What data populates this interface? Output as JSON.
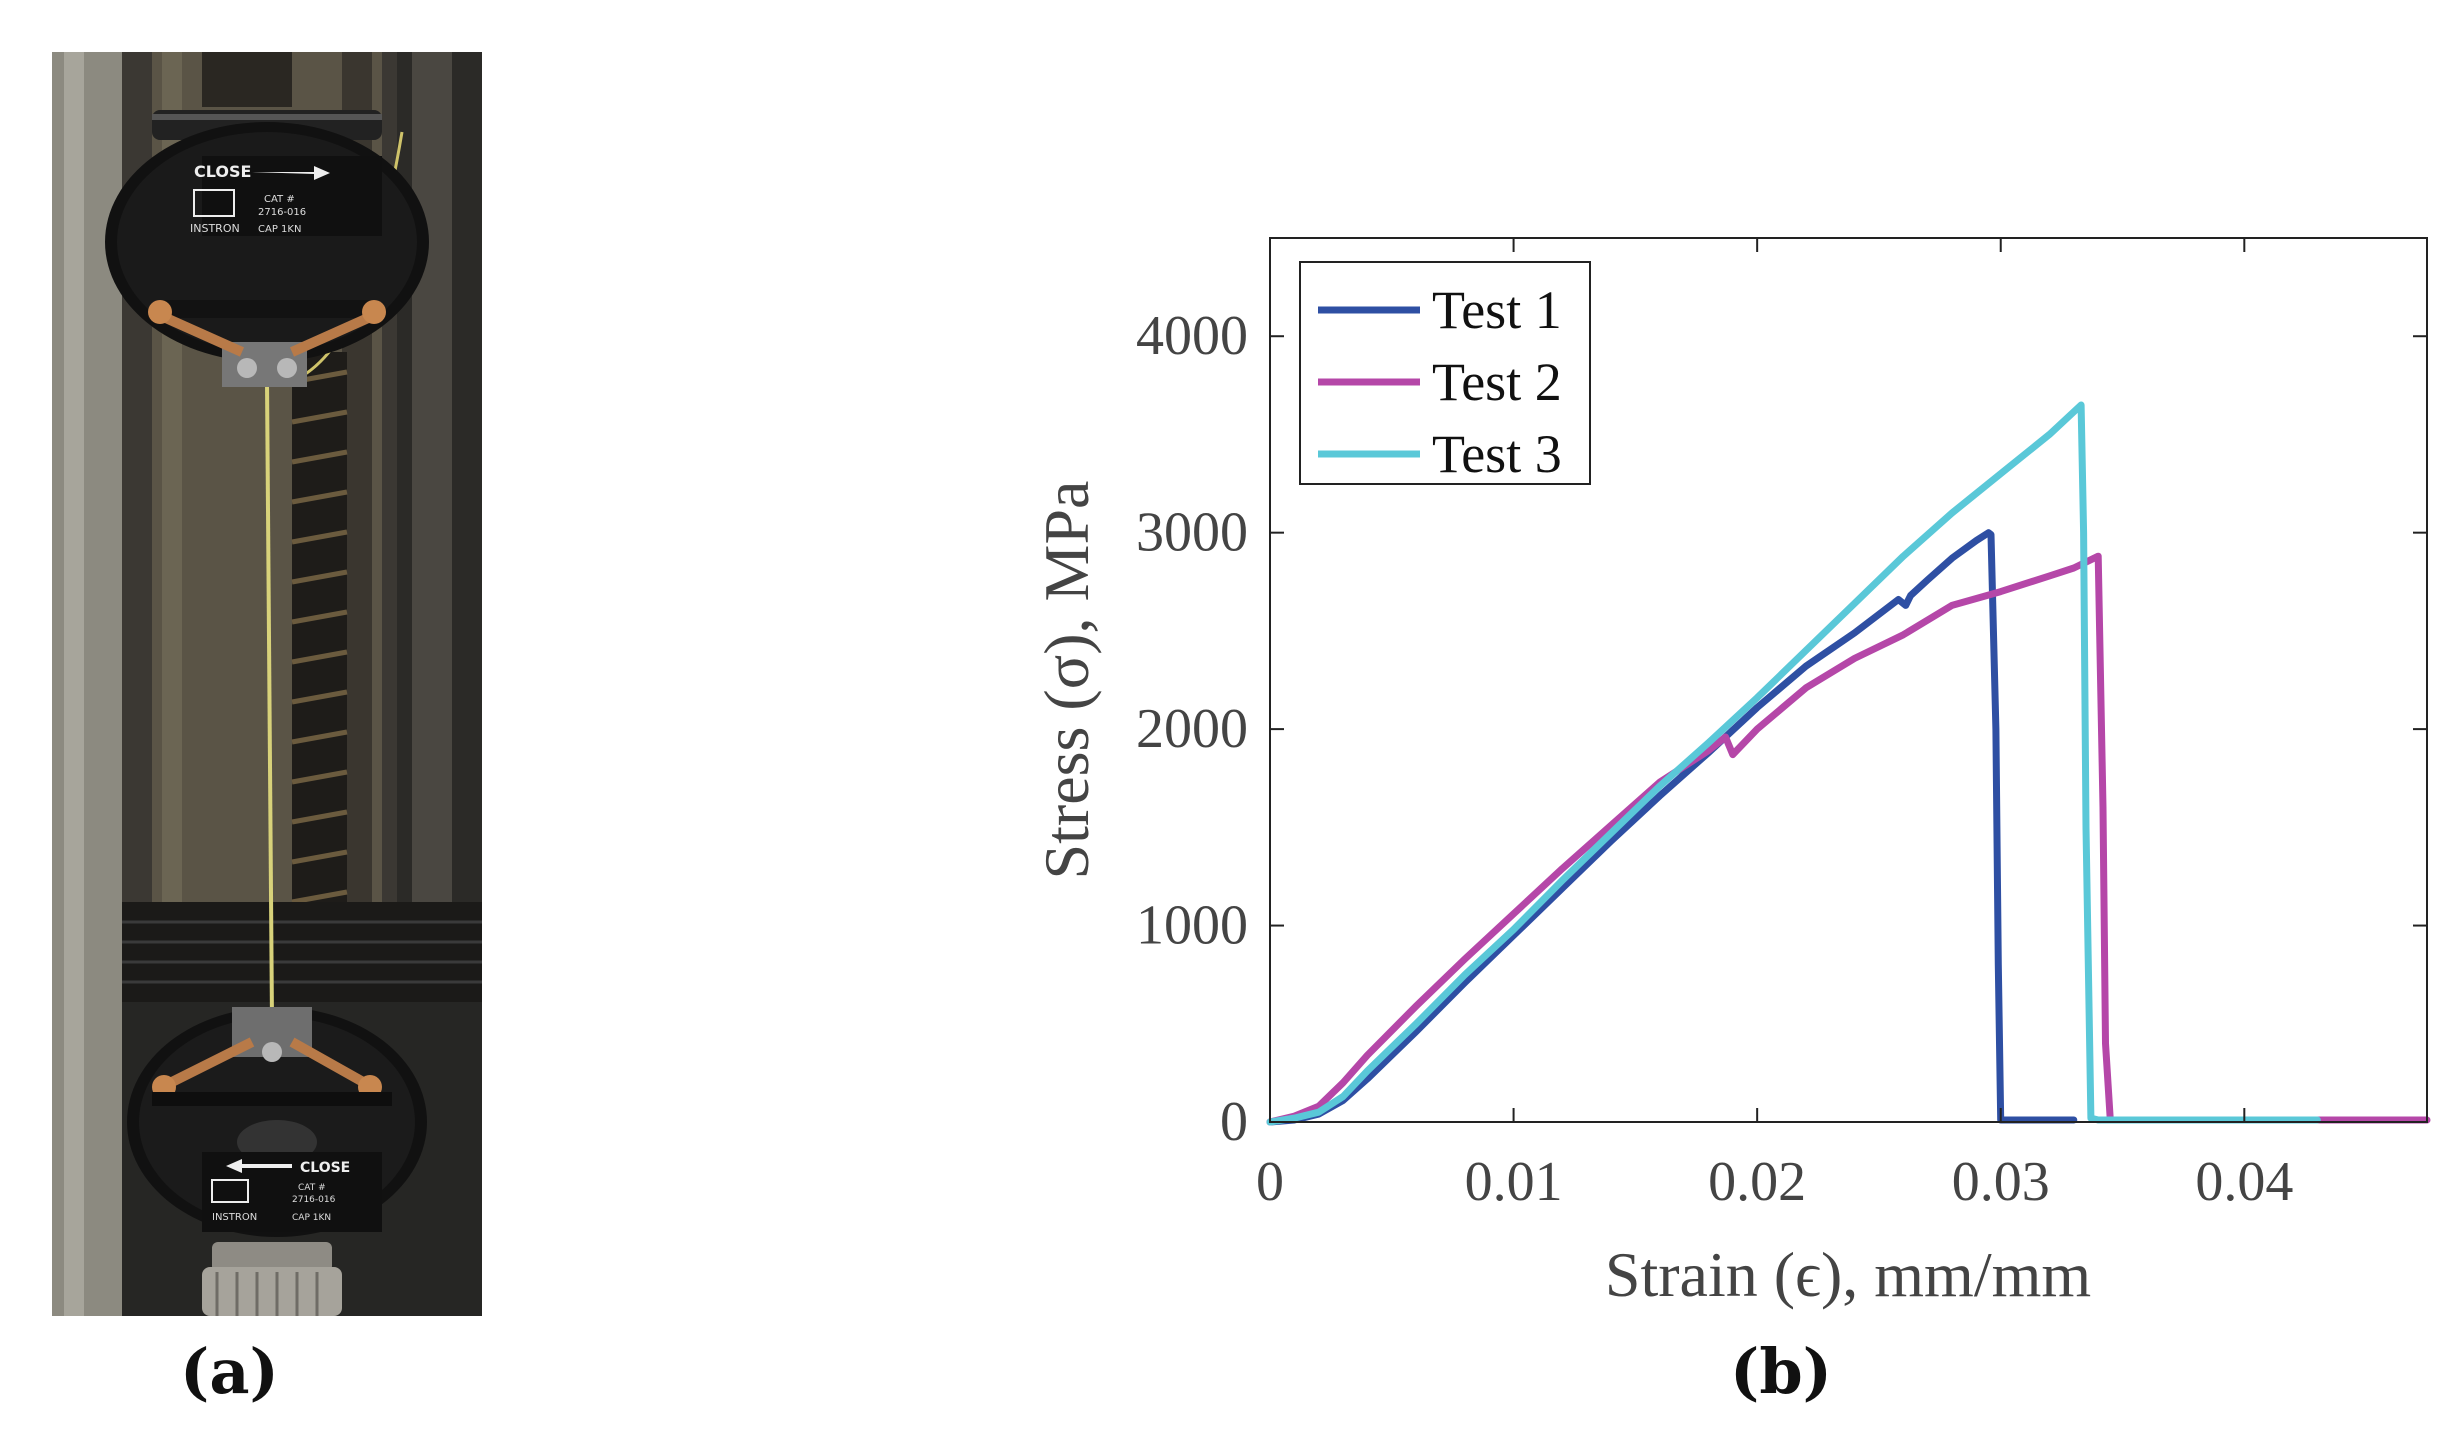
{
  "panel_a": {
    "caption": "(a)",
    "grip_top_labels": [
      "CLOSE",
      "CAT #",
      "2716-016",
      "INSTRON",
      "CAP 1KN"
    ],
    "grip_bottom_labels": [
      "CLOSE",
      "CAT #",
      "2716-016",
      "INSTRON",
      "CAP 1KN"
    ]
  },
  "panel_b": {
    "caption": "(b)"
  },
  "chart_data": {
    "type": "line",
    "title": "",
    "xlabel": "Strain (ϵ), mm/mm",
    "ylabel": "Stress (σ), MPa",
    "xlim": [
      0,
      0.0475
    ],
    "ylim": [
      0,
      4500
    ],
    "xticks": [
      0,
      0.01,
      0.02,
      0.03,
      0.04
    ],
    "xtick_labels": [
      "0",
      "0.01",
      "0.02",
      "0.03",
      "0.04"
    ],
    "yticks": [
      0,
      1000,
      2000,
      3000,
      4000
    ],
    "ytick_labels": [
      "0",
      "1000",
      "2000",
      "3000",
      "4000"
    ],
    "legend_position": "top-left",
    "series": [
      {
        "name": "Test 1",
        "color": "#2e4fa3",
        "x": [
          0,
          0.001,
          0.002,
          0.003,
          0.004,
          0.006,
          0.008,
          0.01,
          0.012,
          0.014,
          0.016,
          0.018,
          0.02,
          0.022,
          0.024,
          0.0258,
          0.0261,
          0.0263,
          0.027,
          0.028,
          0.029,
          0.0295,
          0.0296,
          0.0298,
          0.0299,
          0.03,
          0.0305,
          0.032,
          0.033
        ],
        "y": [
          0,
          10,
          40,
          110,
          220,
          460,
          710,
          950,
          1190,
          1430,
          1660,
          1880,
          2110,
          2320,
          2490,
          2660,
          2630,
          2680,
          2760,
          2870,
          2960,
          3000,
          2990,
          2000,
          800,
          10,
          10,
          10,
          10
        ]
      },
      {
        "name": "Test 2",
        "color": "#b547a8",
        "x": [
          0,
          0.001,
          0.002,
          0.003,
          0.004,
          0.006,
          0.008,
          0.01,
          0.012,
          0.014,
          0.016,
          0.018,
          0.0187,
          0.019,
          0.02,
          0.022,
          0.024,
          0.026,
          0.028,
          0.03,
          0.032,
          0.033,
          0.034,
          0.0342,
          0.0343,
          0.0345,
          0.036,
          0.04,
          0.044,
          0.0475
        ],
        "y": [
          0,
          30,
          80,
          200,
          340,
          590,
          830,
          1060,
          1290,
          1510,
          1730,
          1890,
          1960,
          1870,
          2000,
          2210,
          2360,
          2480,
          2630,
          2700,
          2780,
          2820,
          2880,
          1600,
          400,
          10,
          10,
          10,
          10,
          10
        ]
      },
      {
        "name": "Test 3",
        "color": "#5ac8d8",
        "x": [
          0,
          0.001,
          0.002,
          0.003,
          0.004,
          0.006,
          0.008,
          0.01,
          0.012,
          0.014,
          0.016,
          0.018,
          0.02,
          0.022,
          0.024,
          0.026,
          0.028,
          0.03,
          0.032,
          0.0333,
          0.0334,
          0.0335,
          0.0337,
          0.034,
          0.036,
          0.04,
          0.043
        ],
        "y": [
          0,
          20,
          50,
          130,
          260,
          500,
          750,
          980,
          1230,
          1470,
          1710,
          1930,
          2160,
          2400,
          2640,
          2880,
          3100,
          3300,
          3500,
          3650,
          3000,
          1500,
          20,
          10,
          10,
          10,
          10
        ]
      }
    ]
  }
}
